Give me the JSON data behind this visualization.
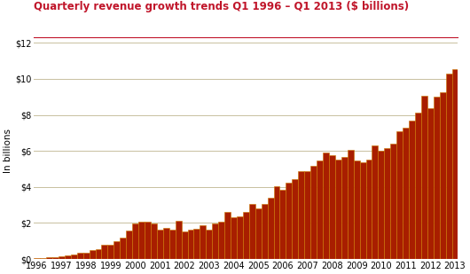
{
  "title": "Quarterly revenue growth trends Q1 1996 – Q1 2013 ($ billions)",
  "ylabel": "In billions",
  "title_color": "#c0152a",
  "bar_fill_color": "#a81e00",
  "bar_edge_color": "#cc7700",
  "background_color": "#ffffff",
  "grid_color": "#c8c0a0",
  "ylim": [
    0,
    12
  ],
  "yticks": [
    0,
    2,
    4,
    6,
    8,
    10,
    12
  ],
  "ytick_labels": [
    "$0",
    "$2",
    "$4",
    "$6",
    "$8",
    "$10",
    "$12"
  ],
  "values": [
    0.03,
    0.06,
    0.09,
    0.1,
    0.13,
    0.21,
    0.26,
    0.35,
    0.35,
    0.49,
    0.56,
    0.78,
    0.8,
    1.0,
    1.2,
    1.6,
    1.95,
    2.09,
    2.09,
    1.97,
    1.61,
    1.73,
    1.65,
    2.1,
    1.52,
    1.65,
    1.67,
    1.89,
    1.63,
    1.96,
    2.09,
    2.6,
    2.31,
    2.37,
    2.61,
    3.08,
    2.79,
    3.07,
    3.38,
    4.06,
    3.82,
    4.25,
    4.44,
    4.87,
    4.9,
    5.19,
    5.48,
    5.92,
    5.77,
    5.51,
    5.68,
    6.08,
    5.49,
    5.36,
    5.51,
    6.3,
    6.03,
    6.18,
    6.4,
    7.08,
    7.27,
    7.68,
    8.12,
    9.05,
    8.39,
    9.0,
    9.26,
    10.31,
    10.55
  ],
  "xtick_years": [
    1996,
    1997,
    1998,
    1999,
    2000,
    2001,
    2002,
    2003,
    2004,
    2005,
    2006,
    2007,
    2008,
    2009,
    2010,
    2011,
    2012,
    2013
  ],
  "title_fontsize": 8.5,
  "ylabel_fontsize": 7.5,
  "tick_fontsize": 7.0
}
